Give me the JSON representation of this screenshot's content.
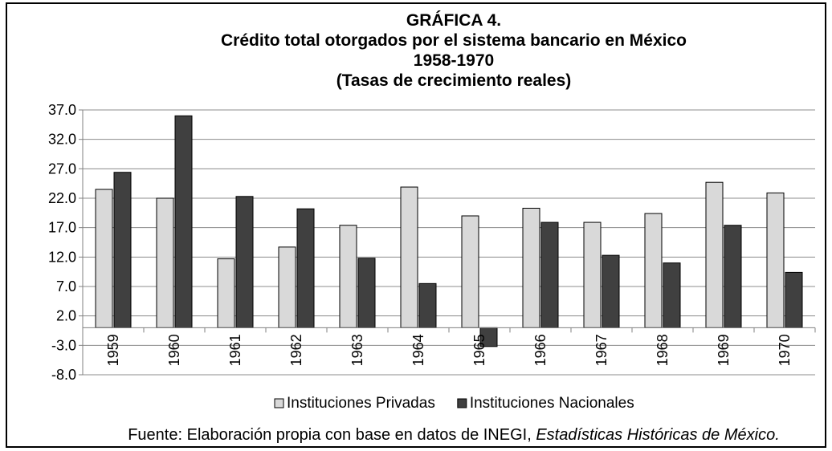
{
  "chart_data": {
    "type": "bar",
    "title": [
      "GRÁFICA 4.",
      "Crédito total otorgados por el sistema bancario en México",
      "1958-1970",
      "(Tasas de crecimiento reales)"
    ],
    "categories": [
      "1959",
      "1960",
      "1961",
      "1962",
      "1963",
      "1964",
      "1965",
      "1966",
      "1967",
      "1968",
      "1969",
      "1970"
    ],
    "series": [
      {
        "name": "Instituciones Privadas",
        "color": "#d9d9d9",
        "values": [
          23.5,
          22.0,
          11.7,
          13.7,
          17.4,
          23.9,
          19.0,
          20.3,
          17.9,
          19.4,
          24.7,
          22.9
        ]
      },
      {
        "name": "Instituciones Nacionales",
        "color": "#404040",
        "values": [
          26.4,
          36.0,
          22.3,
          20.2,
          11.8,
          7.5,
          -3.2,
          17.9,
          12.3,
          11.0,
          17.4,
          9.4
        ]
      }
    ],
    "ylim": [
      -8,
      37
    ],
    "yticks": [
      {
        "value": 37,
        "label": "37.0"
      },
      {
        "value": 32,
        "label": "32.0"
      },
      {
        "value": 27,
        "label": "27.0"
      },
      {
        "value": 22,
        "label": "22.0"
      },
      {
        "value": 17,
        "label": "17.0"
      },
      {
        "value": 12,
        "label": "12.0"
      },
      {
        "value": 7,
        "label": "7.0"
      },
      {
        "value": 2,
        "label": "2.0"
      },
      {
        "value": -3,
        "label": "-3.0"
      },
      {
        "value": -8,
        "label": "-8.0"
      }
    ],
    "grid": true,
    "legend": "bottom",
    "source": "Fuente: Elaboración propia con base en datos de INEGI, ",
    "source_italic": "Estadísticas Históricas de México."
  }
}
